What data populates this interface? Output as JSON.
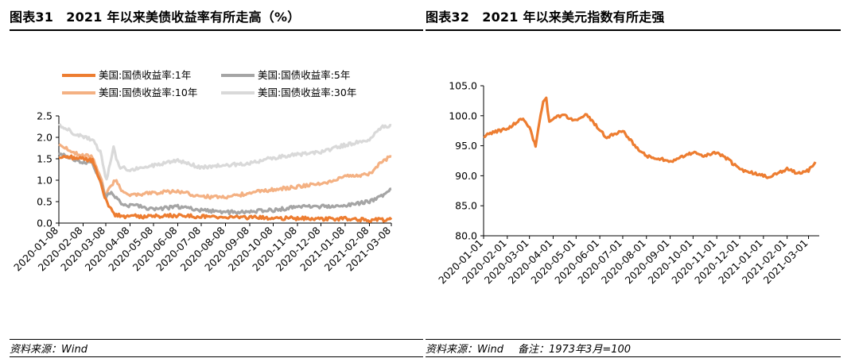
{
  "left": {
    "title": "图表31　2021 年以来美债收益率有所走高（%）",
    "source": "资料来源：Wind",
    "chart_data": {
      "type": "line",
      "title": "",
      "xlabel": "",
      "ylabel": "",
      "ylim": [
        0,
        2.5
      ],
      "yticks": [
        "0.0",
        "0.5",
        "1.0",
        "1.5",
        "2.0",
        "2.5"
      ],
      "xlim": [
        "2020-01-08",
        "2021-03-08"
      ],
      "categories": [
        "2020-01-08",
        "2020-02-08",
        "2020-03-08",
        "2020-04-08",
        "2020-05-08",
        "2020-06-08",
        "2020-07-08",
        "2020-08-08",
        "2020-09-08",
        "2020-10-08",
        "2020-11-08",
        "2020-12-08",
        "2021-01-08",
        "2021-02-08",
        "2021-03-08"
      ],
      "legend_position": "top",
      "series": [
        {
          "name": "美国:国债收益率:1年",
          "color": "#ed7d31",
          "x": [
            "2020-01-08",
            "2020-02-01",
            "2020-02-20",
            "2020-03-01",
            "2020-03-05",
            "2020-03-10",
            "2020-03-15",
            "2020-03-20",
            "2020-03-31",
            "2020-04-08",
            "2020-04-20",
            "2020-05-08",
            "2020-06-08",
            "2020-07-08",
            "2020-08-08",
            "2020-09-08",
            "2020-10-08",
            "2020-11-08",
            "2020-12-08",
            "2021-01-08",
            "2021-02-08",
            "2021-03-08"
          ],
          "values": [
            1.55,
            1.52,
            1.45,
            1.0,
            0.7,
            0.45,
            0.3,
            0.2,
            0.15,
            0.2,
            0.15,
            0.16,
            0.18,
            0.15,
            0.13,
            0.13,
            0.12,
            0.11,
            0.1,
            0.1,
            0.07,
            0.08
          ]
        },
        {
          "name": "美国:国债收益率:5年",
          "color": "#a5a5a5",
          "x": [
            "2020-01-08",
            "2020-02-01",
            "2020-02-20",
            "2020-03-01",
            "2020-03-08",
            "2020-03-15",
            "2020-03-20",
            "2020-03-31",
            "2020-04-08",
            "2020-05-08",
            "2020-06-08",
            "2020-07-08",
            "2020-08-08",
            "2020-09-08",
            "2020-10-08",
            "2020-11-08",
            "2020-12-08",
            "2021-01-08",
            "2021-02-08",
            "2021-02-25",
            "2021-03-08"
          ],
          "values": [
            1.65,
            1.45,
            1.4,
            1.0,
            0.6,
            0.7,
            0.6,
            0.4,
            0.42,
            0.33,
            0.38,
            0.3,
            0.25,
            0.27,
            0.3,
            0.38,
            0.38,
            0.42,
            0.5,
            0.65,
            0.8
          ]
        },
        {
          "name": "美国:国债收益率:10年",
          "color": "#f4b183",
          "x": [
            "2020-01-08",
            "2020-02-01",
            "2020-02-20",
            "2020-03-01",
            "2020-03-08",
            "2020-03-12",
            "2020-03-20",
            "2020-03-31",
            "2020-04-08",
            "2020-05-08",
            "2020-06-08",
            "2020-07-08",
            "2020-08-08",
            "2020-09-08",
            "2020-10-08",
            "2020-11-08",
            "2020-12-08",
            "2021-01-08",
            "2021-02-08",
            "2021-02-25",
            "2021-03-08"
          ],
          "values": [
            1.85,
            1.6,
            1.55,
            1.1,
            0.6,
            0.8,
            1.0,
            0.7,
            0.65,
            0.7,
            0.75,
            0.62,
            0.6,
            0.7,
            0.78,
            0.85,
            0.92,
            1.08,
            1.15,
            1.45,
            1.55
          ]
        },
        {
          "name": "美国:国债收益率:30年",
          "color": "#d9d9d9",
          "x": [
            "2020-01-08",
            "2020-02-01",
            "2020-02-20",
            "2020-03-01",
            "2020-03-09",
            "2020-03-18",
            "2020-03-25",
            "2020-04-08",
            "2020-05-08",
            "2020-06-08",
            "2020-07-08",
            "2020-08-08",
            "2020-09-08",
            "2020-10-08",
            "2020-11-08",
            "2020-12-08",
            "2021-01-08",
            "2021-02-08",
            "2021-02-25",
            "2021-03-08"
          ],
          "values": [
            2.3,
            2.05,
            1.95,
            1.65,
            1.0,
            1.75,
            1.3,
            1.25,
            1.35,
            1.45,
            1.3,
            1.35,
            1.4,
            1.52,
            1.6,
            1.65,
            1.82,
            1.95,
            2.25,
            2.28
          ]
        }
      ]
    }
  },
  "right": {
    "title": "图表32　2021 年以来美元指数有所走强",
    "source": "资料来源：Wind",
    "note": "备注：1973年3月=100",
    "chart_data": {
      "type": "line",
      "title": "",
      "xlabel": "",
      "ylabel": "",
      "ylim": [
        80,
        105
      ],
      "yticks": [
        "80.0",
        "85.0",
        "90.0",
        "95.0",
        "100.0",
        "105.0"
      ],
      "xlim": [
        "2020-01-01",
        "2021-03-15"
      ],
      "categories": [
        "2020-01-01",
        "2020-02-01",
        "2020-03-01",
        "2020-04-01",
        "2020-05-01",
        "2020-06-01",
        "2020-07-01",
        "2020-08-01",
        "2020-09-01",
        "2020-10-01",
        "2020-11-01",
        "2020-12-01",
        "2021-01-01",
        "2021-02-01",
        "2021-03-01"
      ],
      "legend_position": "none",
      "series": [
        {
          "name": "",
          "color": "#ed7d31",
          "x": [
            "2020-01-01",
            "2020-01-15",
            "2020-02-01",
            "2020-02-20",
            "2020-03-01",
            "2020-03-09",
            "2020-03-19",
            "2020-03-23",
            "2020-03-27",
            "2020-04-01",
            "2020-04-15",
            "2020-05-01",
            "2020-05-15",
            "2020-06-01",
            "2020-06-10",
            "2020-07-01",
            "2020-07-20",
            "2020-08-01",
            "2020-08-15",
            "2020-09-01",
            "2020-09-15",
            "2020-10-01",
            "2020-10-15",
            "2020-11-01",
            "2020-11-15",
            "2020-12-01",
            "2020-12-20",
            "2021-01-06",
            "2021-01-20",
            "2021-02-01",
            "2021-02-15",
            "2021-03-01",
            "2021-03-10"
          ],
          "values": [
            96.6,
            97.3,
            97.8,
            99.5,
            98.0,
            95.0,
            102.5,
            102.8,
            98.8,
            99.6,
            100.1,
            99.1,
            100.2,
            97.6,
            96.4,
            97.5,
            94.5,
            93.3,
            93.0,
            92.3,
            93.1,
            93.9,
            93.4,
            93.8,
            92.8,
            91.0,
            90.4,
            89.8,
            90.4,
            91.1,
            90.4,
            90.9,
            92.3
          ]
        }
      ]
    }
  }
}
